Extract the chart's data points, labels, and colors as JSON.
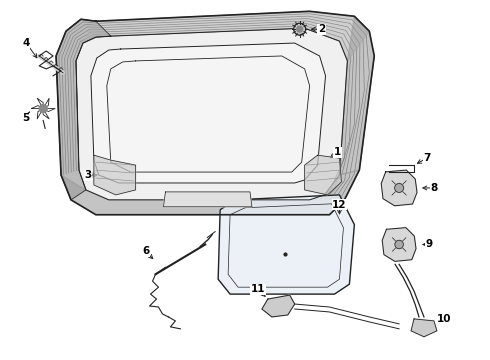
{
  "background_color": "#ffffff",
  "line_color": "#222222",
  "figsize": [
    4.9,
    3.6
  ],
  "dpi": 100,
  "seal_hatch_color": "#888888",
  "light_gray": "#e8e8e8",
  "mid_gray": "#aaaaaa"
}
